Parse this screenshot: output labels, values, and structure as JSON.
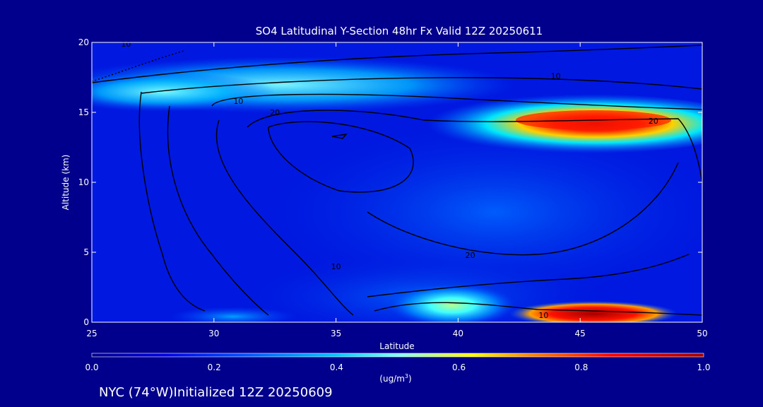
{
  "chart_data": {
    "type": "heatmap",
    "title": "SO4 Latitudinal Y-Section 48hr  Fx Valid 12Z 20250611",
    "xlabel": "Latitude",
    "ylabel": "Altitude (km)",
    "xlim": [
      25,
      50
    ],
    "ylim": [
      0,
      20
    ],
    "x_ticks": [
      "25",
      "30",
      "35",
      "40",
      "45",
      "50"
    ],
    "y_ticks": [
      "0",
      "5",
      "10",
      "15",
      "20"
    ],
    "colorbar": {
      "ticks": [
        "0.0",
        "0.2",
        "0.4",
        "0.6",
        "0.8",
        "1.0"
      ],
      "unit_label": "(ug/m",
      "unit_superscript": "3",
      "unit_label_end": ")",
      "range": [
        0.0,
        1.0
      ],
      "colormap": [
        "#00008c",
        "#0000e6",
        "#0050ff",
        "#00c8ff",
        "#80ffff",
        "#ffff00",
        "#ff8000",
        "#ff0000",
        "#a00000"
      ]
    },
    "concentration_features": [
      {
        "lat": [
          38.0,
          49.5
        ],
        "alt": [
          13.0,
          15.5
        ],
        "peak": 1.0
      },
      {
        "lat": [
          25.0,
          45.0
        ],
        "alt": [
          15.5,
          18.0
        ],
        "peak": 0.5
      },
      {
        "lat": [
          37.5,
          42.5
        ],
        "alt": [
          0.0,
          2.5
        ],
        "peak": 0.6
      },
      {
        "lat": [
          42.5,
          48.5
        ],
        "alt": [
          0.2,
          1.0
        ],
        "peak": 1.0
      },
      {
        "lat": [
          28.0,
          36.0
        ],
        "alt": [
          0.0,
          0.8
        ],
        "peak": 0.3
      }
    ],
    "contour_labels": [
      {
        "text": "10",
        "lat": 26.4,
        "alt": 19.9
      },
      {
        "text": "10",
        "lat": 31.0,
        "alt": 15.8
      },
      {
        "text": "20",
        "lat": 32.5,
        "alt": 15.0
      },
      {
        "text": "10",
        "lat": 44.0,
        "alt": 17.6
      },
      {
        "text": "20",
        "lat": 48.0,
        "alt": 14.4
      },
      {
        "text": "20",
        "lat": 40.5,
        "alt": 4.8
      },
      {
        "text": "10",
        "lat": 35.0,
        "alt": 4.0
      },
      {
        "text": "10",
        "lat": 43.5,
        "alt": 0.5
      }
    ]
  },
  "footer": {
    "info": "NYC (74°W)Initialized 12Z 20250609"
  }
}
